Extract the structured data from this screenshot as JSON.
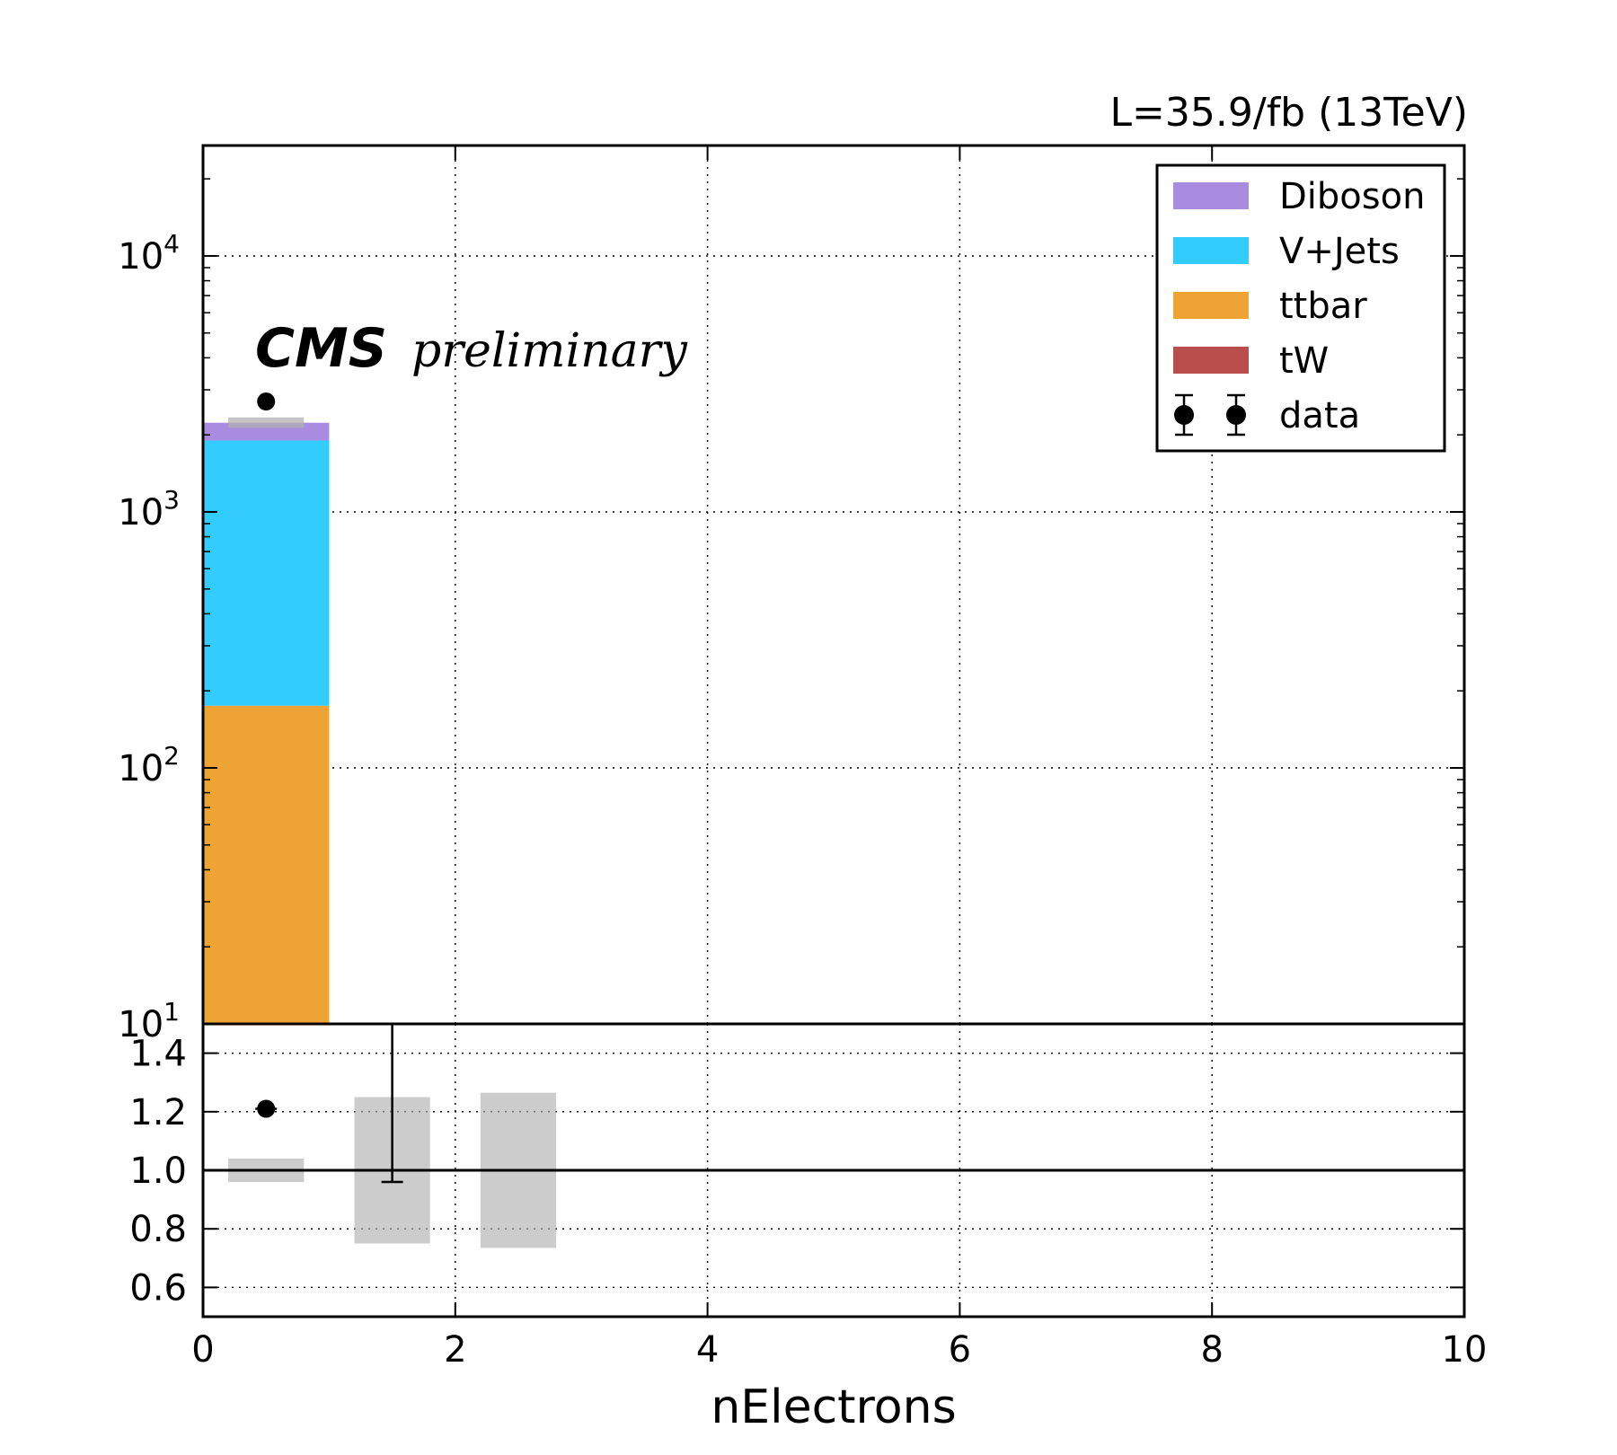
{
  "header": {
    "lumi_label": "L=35.9/fb (13TeV)",
    "experiment": "CMS",
    "status": "preliminary"
  },
  "colors": {
    "Diboson": "#a98ce0",
    "V+Jets": "#33ccff",
    "ttbar": "#eea434",
    "tW": "#b94e4c",
    "data": "#000000",
    "uncertainty": "#b0b0b0"
  },
  "chart_data": [
    {
      "type": "bar",
      "stacked": true,
      "scale": "log",
      "bins": [
        [
          0,
          1
        ],
        [
          1,
          2
        ],
        [
          2,
          3
        ]
      ],
      "series": [
        {
          "name": "tW",
          "values": [
            0,
            0,
            0
          ]
        },
        {
          "name": "ttbar",
          "values": [
            175,
            0,
            0
          ]
        },
        {
          "name": "V+Jets",
          "values": [
            1725,
            0,
            0
          ]
        },
        {
          "name": "Diboson",
          "values": [
            330,
            0,
            0
          ]
        }
      ],
      "total_mc": [
        2230,
        0,
        0
      ],
      "mc_uncertainty_band": {
        "x": [
          0.5
        ],
        "low": [
          2130
        ],
        "high": [
          2340
        ]
      },
      "data": {
        "name": "data",
        "x": [
          0.5
        ],
        "y": [
          2700
        ],
        "yerr": [
          52
        ]
      },
      "xlim": [
        0,
        10
      ],
      "ylim": [
        10,
        27000
      ],
      "yticks": [
        {
          "value": 10,
          "base": "10",
          "exp": "1"
        },
        {
          "value": 100,
          "base": "10",
          "exp": "2"
        },
        {
          "value": 1000,
          "base": "10",
          "exp": "3"
        },
        {
          "value": 10000,
          "base": "10",
          "exp": "4"
        }
      ],
      "grid": true,
      "legend": {
        "placement": "top-right",
        "entries": [
          "Diboson",
          "V+Jets",
          "ttbar",
          "tW",
          "data"
        ]
      }
    },
    {
      "type": "scatter",
      "role": "ratio",
      "xlabel": "nElectrons",
      "xlim": [
        0,
        10
      ],
      "ylim": [
        0.5,
        1.5
      ],
      "xticks": [
        "0",
        "2",
        "4",
        "6",
        "8",
        "10"
      ],
      "yticks": [
        "0.6",
        "0.8",
        "1.0",
        "1.2",
        "1.4"
      ],
      "reference_line": 1.0,
      "uncertainty_bands": [
        {
          "x": [
            0.2,
            0.8
          ],
          "low": 0.96,
          "high": 1.04
        },
        {
          "x": [
            1.2,
            1.8
          ],
          "low": 0.75,
          "high": 1.25
        },
        {
          "x": [
            2.2,
            2.8
          ],
          "low": 0.735,
          "high": 1.265
        }
      ],
      "points": [
        {
          "x": 0.5,
          "y": 1.21,
          "yerr": 0.01
        }
      ],
      "errorbars_without_marker": [
        {
          "x": 1.5,
          "ylow": 0.96,
          "yhigh": 1.5
        }
      ],
      "grid": true
    }
  ]
}
